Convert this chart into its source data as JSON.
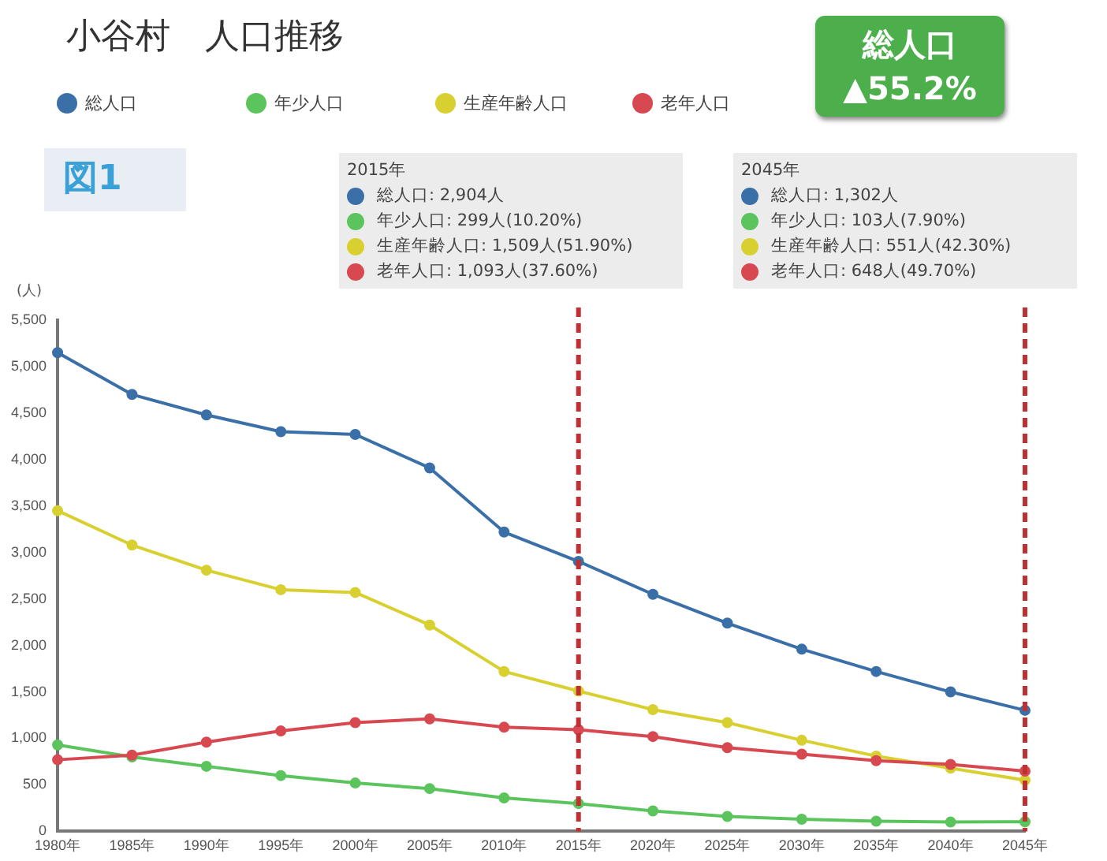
{
  "chart_data": {
    "type": "line",
    "title": "小谷村　人口推移",
    "ylabel": "(人)",
    "categories": [
      "1980年",
      "1985年",
      "1990年",
      "1995年",
      "2000年",
      "2005年",
      "2010年",
      "2015年",
      "2020年",
      "2025年",
      "2030年",
      "2035年",
      "2040年",
      "2045年"
    ],
    "series": [
      {
        "name": "総人口",
        "color": "#3a6fa8",
        "values": [
          5150,
          4700,
          4480,
          4300,
          4270,
          3910,
          3220,
          2904,
          2550,
          2240,
          1960,
          1720,
          1500,
          1302
        ]
      },
      {
        "name": "年少人口",
        "color": "#5cc45c",
        "values": [
          930,
          800,
          700,
          600,
          520,
          460,
          360,
          299,
          220,
          160,
          130,
          110,
          100,
          103
        ]
      },
      {
        "name": "生産年齢人口",
        "color": "#d8d030",
        "values": [
          3450,
          3080,
          2810,
          2600,
          2570,
          2220,
          1720,
          1509,
          1310,
          1170,
          980,
          810,
          680,
          551
        ]
      },
      {
        "name": "老年人口",
        "color": "#d84850",
        "values": [
          770,
          820,
          960,
          1080,
          1170,
          1210,
          1120,
          1093,
          1020,
          900,
          830,
          760,
          720,
          648
        ]
      }
    ],
    "ylim": [
      0,
      5500
    ],
    "yticks": [
      0,
      500,
      {
        "value": 1000,
        "label": "1,000"
      },
      {
        "value": 1500,
        "label": "1,500"
      },
      {
        "value": 2000,
        "label": "2,000"
      },
      {
        "value": 2500,
        "label": "2,500"
      },
      {
        "value": 3000,
        "label": "3,000"
      },
      {
        "value": 3500,
        "label": "3,500"
      },
      {
        "value": 4000,
        "label": "4,000"
      },
      {
        "value": 4500,
        "label": "4,500"
      },
      {
        "value": 5000,
        "label": "5,000"
      },
      {
        "value": 5500,
        "label": "5,500"
      }
    ],
    "grid": false,
    "legend": "top left",
    "marker": "circle",
    "line_style": "solid",
    "ref_lines": [
      {
        "axis": "x",
        "value": "2015年",
        "color": "#c03030",
        "line_style": "dashed"
      },
      {
        "axis": "x",
        "value": "2045年",
        "color": "#c03030",
        "line_style": "dashed"
      }
    ],
    "annotations": [
      "図1",
      "総人口",
      "▲55.2%",
      "2015年",
      "総人口: 2,904人",
      "年少人口: 299人(10.20%)",
      "生産年齢人口: 1,509人(51.90%)",
      "老年人口: 1,093人(37.60%)",
      "2045年",
      "総人口: 1,302人",
      "年少人口: 103人(7.90%)",
      "生産年齢人口: 551人(42.30%)",
      "老年人口: 648人(49.70%)"
    ]
  }
}
